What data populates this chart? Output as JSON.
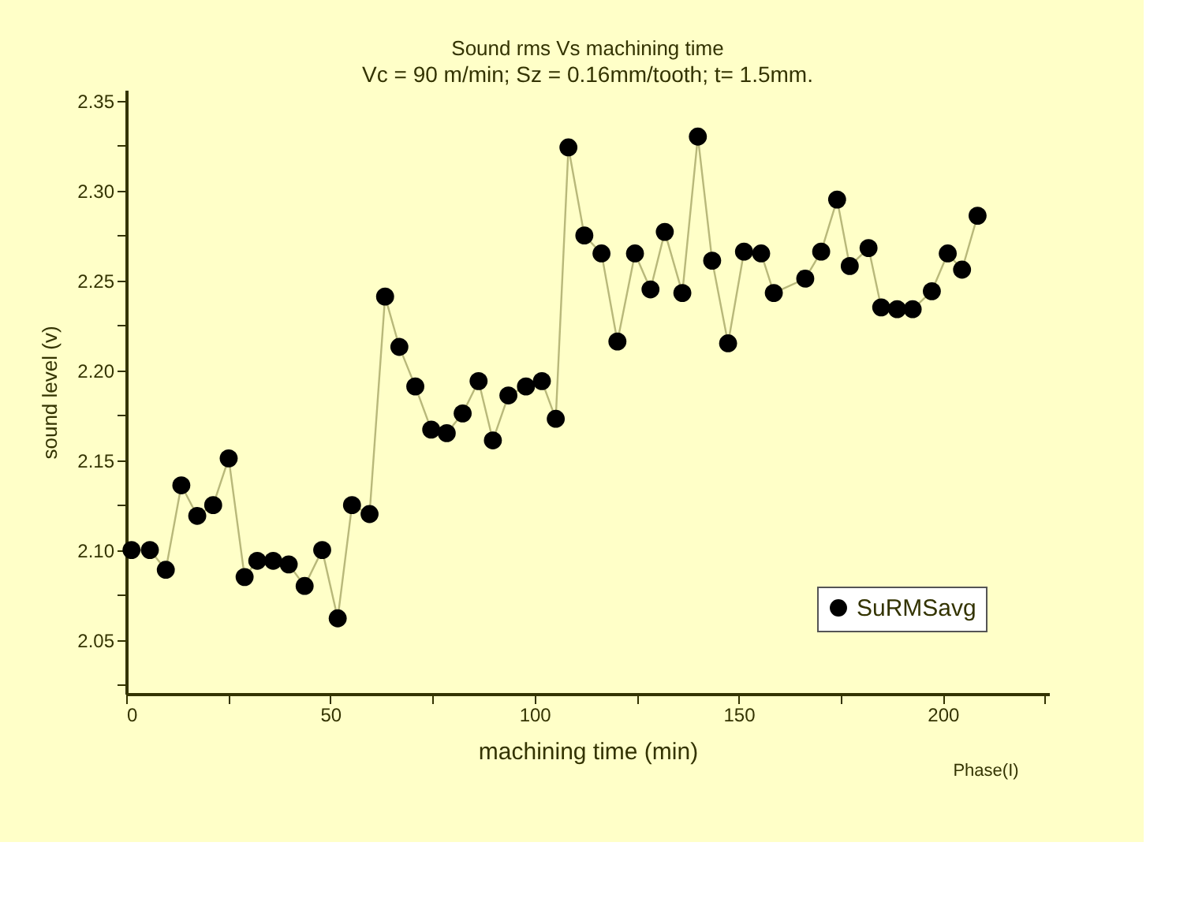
{
  "chart_data": {
    "type": "line",
    "title": "Sound rms Vs machining time",
    "subtitle": "Vc = 90 m/min; Sz = 0.16mm/tooth; t= 1.5mm.",
    "xlabel": "machining time (min)",
    "ylabel": "sound level (v)",
    "annotations": [
      "Phase(I)"
    ],
    "series": [
      {
        "name": "SuRMSavg",
        "color": "#000000",
        "x": [
          1.3,
          5.8,
          9.7,
          13.5,
          17.4,
          21.3,
          25.1,
          29,
          32.1,
          36,
          39.8,
          43.7,
          48,
          51.8,
          55.3,
          59.6,
          63.4,
          66.9,
          70.8,
          74.7,
          78.5,
          82.4,
          86.3,
          89.8,
          93.6,
          97.9,
          101.8,
          105.2,
          108.3,
          112.2,
          116.4,
          120.3,
          124.6,
          128.4,
          131.9,
          136.2,
          140,
          143.5,
          147.4,
          151.3,
          155.5,
          158.6,
          166.3,
          170.2,
          174.1,
          177.2,
          181.8,
          184.9,
          188.8,
          192.6,
          197.3,
          201.2,
          204.7,
          208.5
        ],
        "values": [
          2.1,
          2.1,
          2.089,
          2.136,
          2.119,
          2.125,
          2.151,
          2.085,
          2.094,
          2.094,
          2.092,
          2.08,
          2.1,
          2.062,
          2.125,
          2.12,
          2.241,
          2.213,
          2.191,
          2.167,
          2.165,
          2.176,
          2.194,
          2.161,
          2.186,
          2.191,
          2.194,
          2.173,
          2.324,
          2.275,
          2.265,
          2.216,
          2.265,
          2.245,
          2.277,
          2.243,
          2.33,
          2.261,
          2.215,
          2.266,
          2.265,
          2.243,
          2.251,
          2.266,
          2.295,
          2.258,
          2.268,
          2.235,
          2.234,
          2.234,
          2.244,
          2.265,
          2.256,
          2.286
        ]
      }
    ],
    "xlim": [
      0,
      226
    ],
    "ylim": [
      2.02,
      2.356
    ],
    "xticks": [
      0,
      {
        "value": 25,
        "label": null
      },
      50,
      {
        "value": 75,
        "label": null
      },
      100,
      {
        "value": 125,
        "label": null
      },
      150,
      {
        "value": 175,
        "label": null
      },
      200,
      {
        "value": 225,
        "label": null
      }
    ],
    "yticks": [
      {
        "value": 2.025,
        "label": null
      },
      2.05,
      {
        "value": 2.075,
        "label": null
      },
      {
        "value": 2.1,
        "label": "2.10"
      },
      {
        "value": 2.125,
        "label": null
      },
      2.15,
      {
        "value": 2.175,
        "label": null
      },
      {
        "value": 2.2,
        "label": "2.20"
      },
      {
        "value": 2.225,
        "label": null
      },
      2.25,
      {
        "value": 2.275,
        "label": null
      },
      {
        "value": 2.3,
        "label": "2.30"
      },
      {
        "value": 2.325,
        "label": null
      },
      2.35
    ],
    "grid": false,
    "legend": "bottom right",
    "marker": "circle",
    "line_style": "solid"
  }
}
